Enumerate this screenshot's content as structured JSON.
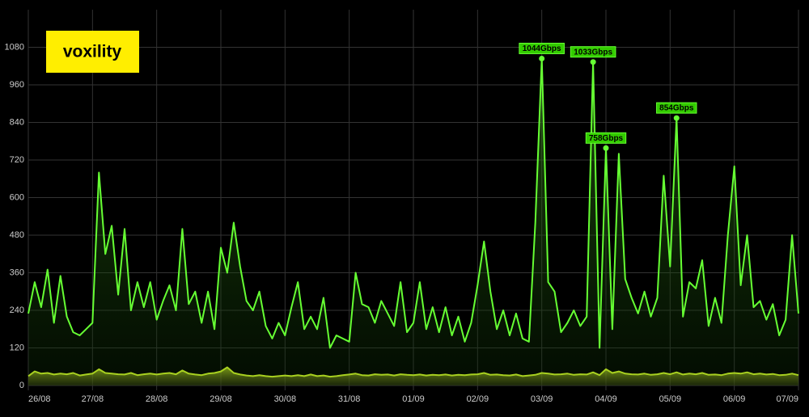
{
  "chart_data": {
    "type": "line",
    "logo": "voxility",
    "x": [
      0,
      0.1,
      0.2,
      0.3,
      0.4,
      0.5,
      0.6,
      0.7,
      0.8,
      0.9,
      1,
      1.1,
      1.2,
      1.3,
      1.4,
      1.5,
      1.6,
      1.7,
      1.8,
      1.9,
      2,
      2.1,
      2.2,
      2.3,
      2.4,
      2.5,
      2.6,
      2.7,
      2.8,
      2.9,
      3,
      3.1,
      3.2,
      3.3,
      3.4,
      3.5,
      3.6,
      3.7,
      3.8,
      3.9,
      4,
      4.1,
      4.2,
      4.3,
      4.4,
      4.5,
      4.6,
      4.7,
      4.8,
      4.9,
      5,
      5.1,
      5.2,
      5.3,
      5.4,
      5.5,
      5.6,
      5.7,
      5.8,
      5.9,
      6,
      6.1,
      6.2,
      6.3,
      6.4,
      6.5,
      6.6,
      6.7,
      6.8,
      6.9,
      7,
      7.1,
      7.2,
      7.3,
      7.4,
      7.5,
      7.6,
      7.7,
      7.8,
      7.9,
      8,
      8.1,
      8.2,
      8.3,
      8.4,
      8.5,
      8.6,
      8.7,
      8.8,
      8.9,
      9,
      9.1,
      9.2,
      9.3,
      9.4,
      9.5,
      9.6,
      9.7,
      9.8,
      9.9,
      10,
      10.1,
      10.2,
      10.3,
      10.4,
      10.5,
      10.6,
      10.7,
      10.8,
      10.9,
      11,
      11.1,
      11.2,
      11.3,
      11.4,
      11.5,
      11.6,
      11.7,
      11.8,
      11.9,
      12
    ],
    "series": [
      {
        "color": "#66ff33",
        "values": [
          230,
          330,
          250,
          370,
          200,
          350,
          220,
          170,
          160,
          180,
          200,
          680,
          420,
          510,
          290,
          500,
          240,
          330,
          250,
          330,
          210,
          270,
          320,
          240,
          500,
          260,
          300,
          200,
          300,
          180,
          440,
          360,
          520,
          380,
          270,
          240,
          300,
          190,
          150,
          200,
          160,
          250,
          330,
          180,
          220,
          180,
          280,
          120,
          160,
          150,
          140,
          360,
          260,
          250,
          200,
          270,
          230,
          190,
          330,
          170,
          200,
          330,
          180,
          250,
          170,
          250,
          160,
          220,
          140,
          200,
          320,
          460,
          300,
          180,
          240,
          160,
          230,
          150,
          140,
          520,
          1044,
          330,
          300,
          170,
          200,
          240,
          190,
          220,
          1033,
          120,
          758,
          180,
          740,
          340,
          280,
          230,
          300,
          220,
          280,
          670,
          380,
          854,
          220,
          330,
          310,
          400,
          190,
          280,
          200,
          480,
          700,
          320,
          480,
          250,
          270,
          210,
          260,
          160,
          210,
          480,
          230
        ]
      },
      {
        "color": "#a8d020",
        "values": [
          30,
          45,
          38,
          40,
          35,
          38,
          36,
          40,
          32,
          35,
          38,
          52,
          40,
          38,
          36,
          35,
          40,
          33,
          36,
          38,
          35,
          38,
          40,
          36,
          48,
          38,
          35,
          33,
          38,
          40,
          45,
          58,
          40,
          35,
          32,
          30,
          33,
          30,
          28,
          30,
          32,
          30,
          33,
          30,
          35,
          30,
          32,
          28,
          30,
          33,
          35,
          38,
          33,
          32,
          36,
          34,
          35,
          32,
          36,
          34,
          33,
          35,
          32,
          34,
          33,
          35,
          32,
          34,
          33,
          35,
          36,
          40,
          34,
          35,
          33,
          32,
          35,
          30,
          32,
          34,
          40,
          38,
          35,
          36,
          38,
          34,
          36,
          35,
          42,
          33,
          52,
          40,
          45,
          38,
          36,
          35,
          38,
          34,
          36,
          40,
          36,
          42,
          35,
          38,
          36,
          40,
          34,
          35,
          33,
          38,
          40,
          38,
          42,
          36,
          38,
          35,
          37,
          33,
          34,
          38,
          33
        ]
      }
    ],
    "annotations": [
      {
        "text": "1044Gbps",
        "x": 8.0,
        "y": 1044
      },
      {
        "text": "1033Gbps",
        "x": 8.8,
        "y": 1033
      },
      {
        "text": "758Gbps",
        "x": 9.0,
        "y": 758
      },
      {
        "text": "854Gbps",
        "x": 10.1,
        "y": 854
      }
    ],
    "xlim": [
      0,
      12
    ],
    "xticks": [
      {
        "value": 0,
        "label": "26/08"
      },
      {
        "value": 1,
        "label": "27/08"
      },
      {
        "value": 2,
        "label": "28/08"
      },
      {
        "value": 3,
        "label": "29/08"
      },
      {
        "value": 4,
        "label": "30/08"
      },
      {
        "value": 5,
        "label": "31/08"
      },
      {
        "value": 6,
        "label": "01/09"
      },
      {
        "value": 7,
        "label": "02/09"
      },
      {
        "value": 8,
        "label": "03/09"
      },
      {
        "value": 9,
        "label": "04/09"
      },
      {
        "value": 10,
        "label": "05/09"
      },
      {
        "value": 11,
        "label": "06/09"
      },
      {
        "value": 12,
        "label": "07/09"
      }
    ],
    "ylim": [
      0,
      1200
    ],
    "yticks": [
      0,
      120,
      240,
      360,
      480,
      600,
      720,
      840,
      960,
      1080
    ],
    "grid": true
  }
}
